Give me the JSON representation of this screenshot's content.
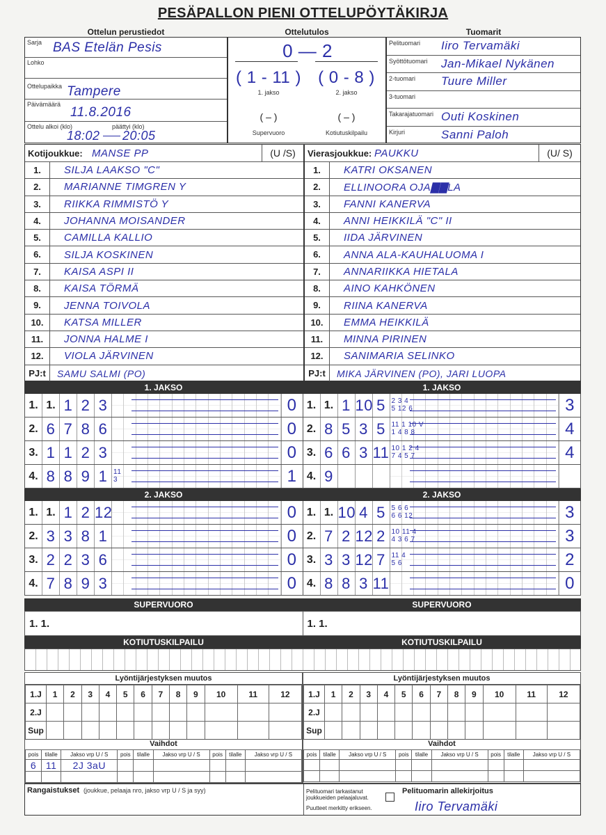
{
  "title": "PESÄPALLON PIENI OTTELUPÖYTÄKIRJA",
  "sections": {
    "basic": "Ottelun perustiedot",
    "result": "Ottelutulos",
    "referees": "Tuomarit"
  },
  "basic": {
    "sarja_label": "Sarja",
    "sarja": "BAS Etelän Pesis",
    "lohko_label": "Lohko",
    "paikka_label": "Ottelupaikka",
    "paikka": "Tampere",
    "pvm_label": "Päivämäärä",
    "pvm": "11.8.2016",
    "alkoi_label": "Ottelu alkoi (klo)",
    "paattyi_label": "päättyi (klo)",
    "alkoi": "18:02",
    "paattyi": "20:05"
  },
  "result": {
    "total": "0 — 2",
    "jakso1": "( 1 - 11 )",
    "jakso2": "( 0 - 8 )",
    "jakso1_label": "1. jakso",
    "jakso2_label": "2. jakso",
    "super": "(   –   )",
    "kotiutus": "(   –   )",
    "super_label": "Supervuoro",
    "kotiutus_label": "Kotiutuskilpailu"
  },
  "referees": [
    {
      "label": "Pelituomari",
      "name": "Iiro Tervamäki"
    },
    {
      "label": "Syöttötuomari",
      "name": "Jan-Mikael Nykänen"
    },
    {
      "label": "2-tuomari",
      "name": "Tuure Miller"
    },
    {
      "label": "3-tuomari",
      "name": ""
    },
    {
      "label": "Takarajatuomari",
      "name": "Outi Koskinen"
    },
    {
      "label": "Kirjuri",
      "name": "Sanni Paloh"
    }
  ],
  "home": {
    "label": "Kotijoukkue:",
    "name": "MANSE PP",
    "us": "(U /S)",
    "players": [
      "SILJA LAAKSO \"C\"",
      "MARIANNE TIMGREN Y",
      "RIIKKA RIMMISTÖ Y",
      "JOHANNA MOISANDER",
      "CAMILLA KALLIO",
      "SILJA KOSKINEN",
      "KAISA ASPI  II",
      "KAISA TÖRMÄ",
      "JENNA TOIVOLA",
      "KATSA MILLER",
      "JONNA HALME I",
      "VIOLA JÄRVINEN"
    ],
    "pj_label": "PJ:t",
    "pj": "SAMU SALMI (PO)"
  },
  "away": {
    "label": "Vierasjoukkue:",
    "name": "PAUKKU",
    "us": "(U/ S)",
    "players": [
      "KATRI OKSANEN",
      "ELLINOORA OJA▇▇LA",
      "FANNI KANERVA",
      "ANNI HEIKKILÄ \"C\"   II",
      "IIDA JÄRVINEN",
      "ANNA ALA-KAUHALUOMA  I",
      "ANNARIIKKA HIETALA",
      "AINO KAHKÖNEN",
      "RIINA KANERVA",
      "EMMA HEIKKILÄ",
      "MINNA PIRINEN",
      "SANIMARIA SELINKO"
    ],
    "pj_label": "PJ:t",
    "pj": "MIKA JÄRVINEN (PO), JARI LUOPA"
  },
  "numbers": [
    "1.",
    "2.",
    "3.",
    "4.",
    "5.",
    "6.",
    "7.",
    "8.",
    "9.",
    "10.",
    "11.",
    "12."
  ],
  "periods": [
    {
      "title": "1. JAKSO",
      "home": [
        {
          "label": "1.",
          "cells": [
            "1.",
            "1",
            "2",
            "3"
          ],
          "note": "",
          "score": "0"
        },
        {
          "label": "2.",
          "cells": [
            "6",
            "7",
            "8",
            "6"
          ],
          "note": "",
          "score": "0"
        },
        {
          "label": "3.",
          "cells": [
            "1",
            "1",
            "2",
            "3"
          ],
          "note": "",
          "score": "0"
        },
        {
          "label": "4.",
          "cells": [
            "8",
            "8",
            "9",
            "1"
          ],
          "note": "11\n3",
          "score": "1"
        }
      ],
      "away": [
        {
          "label": "1.",
          "cells": [
            "1.",
            "1",
            "10",
            "5"
          ],
          "note": "2 3 4\n5 12 6",
          "score": "3"
        },
        {
          "label": "2.",
          "cells": [
            "8",
            "5",
            "3",
            "5"
          ],
          "note": "11 1 10 V\n1 4 8 8",
          "score": "4"
        },
        {
          "label": "3.",
          "cells": [
            "6",
            "6",
            "3",
            "11"
          ],
          "note": "10 1 2 4\n7 4 5 7",
          "score": "4"
        },
        {
          "label": "4.",
          "cells": [
            "9",
            "",
            "",
            ""
          ],
          "note": "",
          "score": ""
        }
      ]
    },
    {
      "title": "2. JAKSO",
      "home": [
        {
          "label": "1.",
          "cells": [
            "1.",
            "1",
            "2",
            "12"
          ],
          "note": "",
          "score": "0"
        },
        {
          "label": "2.",
          "cells": [
            "3",
            "3",
            "8",
            "1"
          ],
          "note": "",
          "score": "0"
        },
        {
          "label": "3.",
          "cells": [
            "2",
            "2",
            "3",
            "6"
          ],
          "note": "",
          "score": "0"
        },
        {
          "label": "4.",
          "cells": [
            "7",
            "8",
            "9",
            "3"
          ],
          "note": "",
          "score": "0"
        }
      ],
      "away": [
        {
          "label": "1.",
          "cells": [
            "1.",
            "10",
            "4",
            "5"
          ],
          "note": "5 6 6\n6 6 12",
          "score": "3"
        },
        {
          "label": "2.",
          "cells": [
            "7",
            "2",
            "12",
            "2"
          ],
          "note": "10 11 4\n4 3 6 7",
          "score": "3"
        },
        {
          "label": "3.",
          "cells": [
            "3",
            "3",
            "12",
            "7"
          ],
          "note": "11 4\n5 6",
          "score": "2"
        },
        {
          "label": "4.",
          "cells": [
            "8",
            "8",
            "3",
            "11"
          ],
          "note": "",
          "score": "0"
        }
      ]
    }
  ],
  "supervuoro": {
    "title": "SUPERVUORO",
    "home_label": "1. 1.",
    "away_label": "1. 1."
  },
  "kotiutus": {
    "title": "KOTIUTUSKILPAILU"
  },
  "order_change": {
    "title": "Lyöntijärjestyksen muutos",
    "cols": [
      "1.J",
      "1",
      "2",
      "3",
      "4",
      "5",
      "6",
      "7",
      "8",
      "9",
      "10",
      "11",
      "12"
    ],
    "rows": [
      "2.J",
      "Sup"
    ]
  },
  "vaihdot": {
    "title": "Vaihdot",
    "headers": [
      "pois",
      "tilalle",
      "Jakso vrp U / S",
      "pois",
      "tilalle",
      "Jakso vrp U / S",
      "pois",
      "tilalle",
      "Jakso vrp U / S"
    ],
    "home_entry": [
      "6",
      "11",
      "2J 3aU"
    ]
  },
  "penalties": {
    "label": "Rangaistukset",
    "hint": "(joukkue, pelaaja nro, jakso vrp U / S ja syy)"
  },
  "check": {
    "text1": "Pelituomari tarkastanut joukkueiden pelaajaluvat.",
    "text2": "Puutteet merkitty erikseen."
  },
  "signature": {
    "label": "Pelituomarin allekirjoitus",
    "value": "Iiro Tervamäki"
  },
  "colors": {
    "ink": "#2b2fa8",
    "bar": "#333333"
  }
}
